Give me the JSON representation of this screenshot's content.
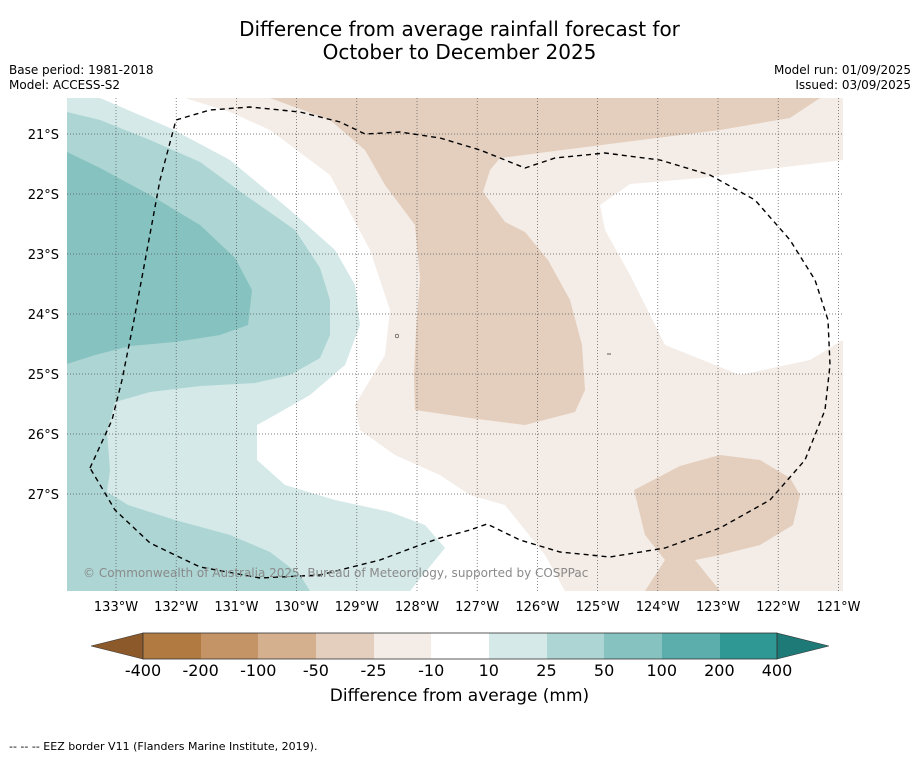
{
  "title": {
    "line1": "Difference from average rainfall forecast for",
    "line2": "October to December 2025"
  },
  "meta_left": {
    "base_period": "Base period: 1981-2018",
    "model": "Model: ACCESS-S2"
  },
  "meta_right": {
    "model_run": "Model run: 01/09/2025",
    "issued": "Issued: 03/09/2025"
  },
  "map": {
    "lon_labels": [
      "133°W",
      "132°W",
      "131°W",
      "130°W",
      "129°W",
      "128°W",
      "127°W",
      "126°W",
      "125°W",
      "124°W",
      "123°W",
      "122°W",
      "121°W"
    ],
    "lat_labels": [
      "21°S",
      "22°S",
      "23°S",
      "24°S",
      "25°S",
      "26°S",
      "27°S"
    ],
    "copyright": "© Commonwealth of Australia 2025, Bureau of Meteorology, supported by COSPPac",
    "colors": {
      "m400": "#8c5a2a",
      "m200": "#b07a40",
      "m100": "#c49466",
      "m50": "#d4b08e",
      "m25": "#e4cfbe",
      "m10": "#f4ece6",
      "neutral": "#ffffff",
      "p10": "#d4e9e8",
      "p25": "#acd5d3",
      "p50": "#85c2c0",
      "p100": "#5baeac",
      "p200": "#2f9894",
      "p400": "#1e7a76"
    }
  },
  "colorbar": {
    "tick_labels": [
      "-400",
      "-200",
      "-100",
      "-50",
      "-25",
      "-10",
      "10",
      "25",
      "50",
      "100",
      "200",
      "400"
    ],
    "unit_label": "Difference from average (mm)"
  },
  "footnote": "--  --  -- EEZ border V11 (Flanders Marine Institute, 2019)."
}
